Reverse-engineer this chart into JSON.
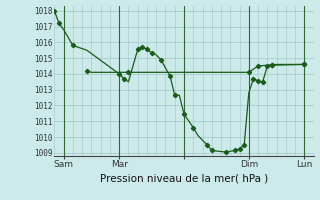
{
  "xlabel": "Pression niveau de la mer( hPa )",
  "bg_color": "#cceaea",
  "grid_color": "#aacccc",
  "line_color": "#1a5c1a",
  "vline_color": "#336633",
  "ylim": [
    1008.8,
    1018.3
  ],
  "yticks": [
    1009,
    1010,
    1011,
    1012,
    1013,
    1014,
    1015,
    1016,
    1017,
    1018
  ],
  "xlim": [
    0,
    28
  ],
  "xtick_positions": [
    1,
    7,
    14,
    21,
    27
  ],
  "xtick_labels": [
    "Sam",
    "Mar",
    "",
    "Dim",
    "Lun"
  ],
  "vline_x": [
    1,
    7,
    14,
    21,
    27
  ],
  "line1_x": [
    0,
    0.5,
    1.0,
    1.5,
    2.0,
    3.5,
    7.0,
    7.5,
    8.0,
    9.0,
    9.5,
    10.0,
    10.5,
    11.0,
    11.5,
    12.5,
    13.0,
    13.5,
    14.0,
    15.0,
    15.5,
    16.5,
    17.0,
    18.5,
    19.5,
    20.0,
    20.5,
    21.0,
    21.5,
    22.0,
    22.5,
    23.0,
    23.5,
    27.0
  ],
  "line1_y": [
    1018.0,
    1017.2,
    1016.8,
    1016.3,
    1015.8,
    1015.5,
    1014.0,
    1013.7,
    1013.5,
    1015.55,
    1015.7,
    1015.55,
    1015.35,
    1015.2,
    1014.9,
    1013.85,
    1012.65,
    1012.65,
    1011.45,
    1010.6,
    1010.1,
    1009.5,
    1009.15,
    1009.05,
    1009.15,
    1009.25,
    1009.5,
    1012.8,
    1013.7,
    1013.55,
    1013.5,
    1014.5,
    1014.55,
    1014.6
  ],
  "line1_markers_x": [
    0,
    0.5,
    2.0,
    7.0,
    7.5,
    9.0,
    9.5,
    10.0,
    10.5,
    11.5,
    12.5,
    13.0,
    14.0,
    15.0,
    16.5,
    17.0,
    18.5,
    19.5,
    20.0,
    20.5,
    21.5,
    22.0,
    22.5,
    23.0,
    23.5,
    27.0
  ],
  "line1_markers_y": [
    1018.0,
    1017.2,
    1015.8,
    1014.0,
    1013.7,
    1015.55,
    1015.7,
    1015.55,
    1015.35,
    1014.9,
    1013.85,
    1012.65,
    1011.45,
    1010.6,
    1009.5,
    1009.15,
    1009.05,
    1009.15,
    1009.25,
    1009.5,
    1013.7,
    1013.55,
    1013.5,
    1014.5,
    1014.55,
    1014.6
  ],
  "line2_x": [
    3.5,
    4.0,
    5.0,
    6.0,
    7.0,
    8.0,
    9.0,
    10.0,
    11.0,
    12.0,
    13.0,
    14.0,
    15.0,
    16.0,
    17.0,
    18.0,
    19.0,
    20.0,
    21.0,
    22.0,
    23.0,
    24.0,
    27.0
  ],
  "line2_y": [
    1014.2,
    1014.1,
    1014.1,
    1014.1,
    1014.1,
    1014.1,
    1014.1,
    1014.1,
    1014.1,
    1014.1,
    1014.1,
    1014.1,
    1014.1,
    1014.1,
    1014.1,
    1014.1,
    1014.1,
    1014.1,
    1014.1,
    1014.5,
    1014.55,
    1014.6,
    1014.6
  ],
  "line2_markers_x": [
    3.5,
    8.0,
    21.0,
    22.0,
    23.5,
    27.0
  ],
  "line2_markers_y": [
    1014.2,
    1014.1,
    1014.1,
    1014.5,
    1014.55,
    1014.6
  ],
  "xlabel_fontsize": 7.5,
  "ytick_fontsize": 5.5,
  "xtick_fontsize": 6.5
}
